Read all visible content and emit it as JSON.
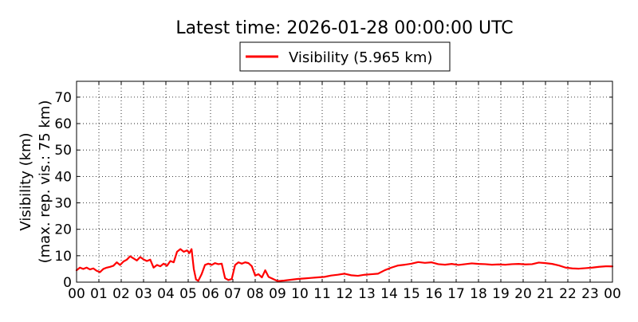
{
  "chart_data": {
    "type": "line",
    "title": "Latest time: 2026-01-28 00:00:00 UTC",
    "xlabel": "",
    "ylabel_lines": [
      "Visibility (km)",
      "(max. rep. vis.: 75 km)"
    ],
    "xlim": [
      0,
      24
    ],
    "ylim": [
      0,
      76
    ],
    "grid": true,
    "legend_position": "top-center",
    "x_tick_labels": [
      "00",
      "01",
      "02",
      "03",
      "04",
      "05",
      "06",
      "07",
      "08",
      "09",
      "10",
      "11",
      "12",
      "13",
      "14",
      "15",
      "16",
      "17",
      "18",
      "19",
      "20",
      "21",
      "22",
      "23",
      "00"
    ],
    "y_ticks": [
      0,
      10,
      20,
      30,
      40,
      50,
      60,
      70
    ],
    "series": [
      {
        "name": "Visibility (5.965 km)",
        "color": "#ff0000",
        "x": [
          0.0,
          0.15,
          0.3,
          0.45,
          0.6,
          0.75,
          0.9,
          1.05,
          1.2,
          1.35,
          1.5,
          1.65,
          1.8,
          1.95,
          2.1,
          2.25,
          2.4,
          2.55,
          2.7,
          2.85,
          3.0,
          3.15,
          3.3,
          3.45,
          3.6,
          3.75,
          3.9,
          4.05,
          4.2,
          4.35,
          4.5,
          4.65,
          4.8,
          4.95,
          5.05,
          5.15,
          5.25,
          5.35,
          5.45,
          5.6,
          5.75,
          5.9,
          6.05,
          6.2,
          6.35,
          6.5,
          6.65,
          6.8,
          6.95,
          7.1,
          7.25,
          7.4,
          7.55,
          7.7,
          7.85,
          8.0,
          8.15,
          8.3,
          8.45,
          8.6,
          8.8,
          9.0,
          9.3,
          9.6,
          9.9,
          10.2,
          10.5,
          10.8,
          11.1,
          11.4,
          11.7,
          12.0,
          12.3,
          12.6,
          12.9,
          13.2,
          13.5,
          13.8,
          14.1,
          14.4,
          14.7,
          15.0,
          15.3,
          15.6,
          15.9,
          16.2,
          16.5,
          16.8,
          17.1,
          17.4,
          17.7,
          18.0,
          18.3,
          18.6,
          18.9,
          19.2,
          19.5,
          19.8,
          20.1,
          20.4,
          20.7,
          21.0,
          21.3,
          21.6,
          21.9,
          22.2,
          22.5,
          22.8,
          23.1,
          23.4,
          23.7,
          24.0
        ],
        "values": [
          4.5,
          5.5,
          5.0,
          5.5,
          4.8,
          5.2,
          4.3,
          3.8,
          5.0,
          5.5,
          5.8,
          6.2,
          7.5,
          6.5,
          7.8,
          8.5,
          9.8,
          9.0,
          8.2,
          9.5,
          8.6,
          8.0,
          8.5,
          5.5,
          6.5,
          6.0,
          7.0,
          6.2,
          8.0,
          7.5,
          11.5,
          12.5,
          11.5,
          12.0,
          11.0,
          12.5,
          5.0,
          1.0,
          0.5,
          3.0,
          6.5,
          7.0,
          6.5,
          7.2,
          6.8,
          7.0,
          1.5,
          0.8,
          1.2,
          6.5,
          7.5,
          7.0,
          7.5,
          7.2,
          6.0,
          2.5,
          3.0,
          1.8,
          4.5,
          2.0,
          1.2,
          0.4,
          0.6,
          0.9,
          1.2,
          1.4,
          1.6,
          1.8,
          2.0,
          2.5,
          2.8,
          3.2,
          2.6,
          2.4,
          2.8,
          3.0,
          3.2,
          4.5,
          5.5,
          6.3,
          6.6,
          7.0,
          7.6,
          7.3,
          7.5,
          6.8,
          6.6,
          6.9,
          6.5,
          6.8,
          7.1,
          6.9,
          6.8,
          6.6,
          6.7,
          6.6,
          6.8,
          6.9,
          6.7,
          6.8,
          7.4,
          7.2,
          6.9,
          6.3,
          5.5,
          5.2,
          5.1,
          5.3,
          5.5,
          5.8,
          6.0,
          5.965
        ]
      }
    ]
  }
}
